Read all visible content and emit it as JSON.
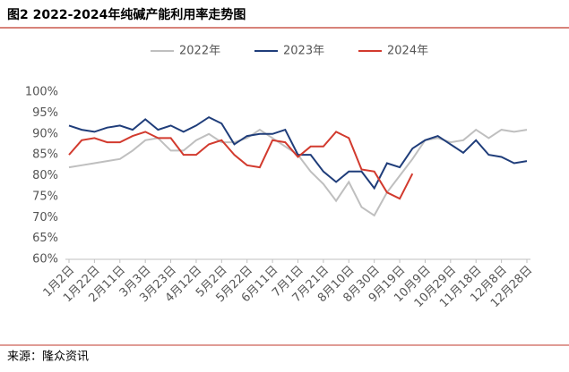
{
  "chart_data": {
    "type": "line",
    "title": "图2   2022-2024年纯碱产能利用率走势图",
    "source": "来源：隆众资讯",
    "categories": [
      "1月2日",
      null,
      "1月22日",
      null,
      "2月11日",
      null,
      "3月3日",
      null,
      "3月23日",
      null,
      "4月12日",
      null,
      "5月2日",
      null,
      "5月22日",
      null,
      "6月11日",
      null,
      "7月1日",
      null,
      "7月21日",
      null,
      "8月10日",
      null,
      "8月30日",
      null,
      "9月19日",
      null,
      "10月9日",
      null,
      "10月29日",
      null,
      "11月18日",
      null,
      "12月8日",
      null,
      "12月28日"
    ],
    "series": [
      {
        "name": "2022年",
        "color": "#bfbfbf",
        "values": [
          82,
          82.5,
          83,
          83.5,
          84,
          86,
          88.5,
          89,
          86,
          86,
          88.5,
          90,
          88,
          88,
          89,
          91,
          89,
          87,
          85,
          81,
          78,
          74,
          78.5,
          72.5,
          70.5,
          76,
          80,
          84,
          88.5,
          89,
          88,
          88.5,
          91,
          89,
          91,
          90.5,
          91
        ]
      },
      {
        "name": "2023年",
        "color": "#1f3d7a",
        "values": [
          92,
          91,
          90.5,
          91.5,
          92,
          91,
          93.5,
          91,
          92,
          90.5,
          92,
          94,
          92.5,
          87.5,
          89.5,
          90,
          90,
          91,
          85,
          85,
          81,
          78.5,
          81,
          81,
          77,
          83,
          82,
          86.5,
          88.5,
          89.5,
          87.5,
          85.5,
          88.5,
          85,
          84.5,
          83,
          83.5
        ]
      },
      {
        "name": "2024年",
        "color": "#d23a2e",
        "values": [
          85,
          88.5,
          89,
          88,
          88,
          89.5,
          90.5,
          89,
          89,
          85,
          85,
          87.5,
          88.5,
          85,
          82.5,
          82,
          88.5,
          88,
          84.5,
          87,
          87,
          90.5,
          89,
          81.5,
          81,
          76,
          74.5,
          80.5,
          null,
          null,
          null,
          null,
          null,
          null,
          null,
          null,
          null
        ]
      }
    ],
    "ylim": [
      60,
      100
    ],
    "yticks": [
      {
        "value": 60,
        "label": "60%"
      },
      {
        "value": 65,
        "label": "65%"
      },
      {
        "value": 70,
        "label": "70%"
      },
      {
        "value": 75,
        "label": "75%"
      },
      {
        "value": 80,
        "label": "80%"
      },
      {
        "value": 85,
        "label": "85%"
      },
      {
        "value": 90,
        "label": "90%"
      },
      {
        "value": 95,
        "label": "95%"
      },
      {
        "value": 100,
        "label": "100%"
      }
    ],
    "legend": "top"
  }
}
